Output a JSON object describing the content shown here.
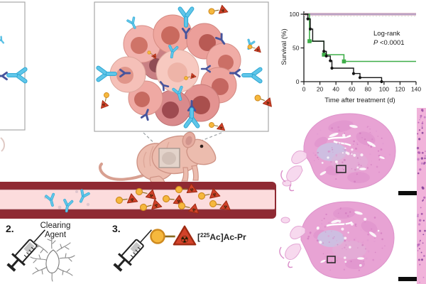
{
  "figure": {
    "steps": {
      "step2": {
        "number": "2.",
        "label_line1": "Clearing",
        "label_line2": "Agent"
      },
      "step3": {
        "number": "3.",
        "ligand": {
          "bracket": "[",
          "isotope": "225",
          "rest": "Ac]Ac-Pr"
        }
      }
    },
    "colors": {
      "antibody_cyan": "#5fc6e9",
      "receptor_navy": "#46549c",
      "payload_yellow": "#f6b83d",
      "payload_red": "#d2422a",
      "vessel_wall": "#8f2a33",
      "vessel_lumen": "#fcdcdd",
      "tumor_cell_pink": "#f2b3ae",
      "tissue_pink": "#e8a3d4",
      "mouse_body": "#ecbcae"
    }
  },
  "chart_data": {
    "type": "line",
    "subtype": "kaplan-meier",
    "title": "",
    "xlabel": "Time after treatment (d)",
    "ylabel": "Survival (%)",
    "xlim": [
      0,
      140
    ],
    "ylim": [
      0,
      100
    ],
    "xticks": [
      0,
      20,
      40,
      60,
      80,
      100,
      120,
      140
    ],
    "yticks": [
      0,
      50,
      100
    ],
    "grid": false,
    "legend": "none",
    "annotation": {
      "line1": "Log-rank",
      "p_symbol": "P",
      "p_value": " <0.0001"
    },
    "series": [
      {
        "name": "censor-dashes",
        "color": "#ccd8c6",
        "width": 1,
        "dash": "1.5,3",
        "points": [
          [
            2,
            97
          ],
          [
            140,
            97
          ]
        ],
        "markers": [],
        "marker": "none"
      },
      {
        "name": "pink-line-100pct",
        "color": "#dfbccb",
        "width": 4,
        "points": [
          [
            0,
            100
          ],
          [
            140,
            100
          ]
        ],
        "markers": [],
        "marker": "none"
      },
      {
        "name": "purple-line-100pct",
        "color": "#b9a3c5",
        "width": 2,
        "points": [
          [
            0,
            100
          ],
          [
            140,
            100
          ]
        ],
        "markers": [],
        "marker": "none"
      },
      {
        "name": "green-line",
        "color": "#3fae49",
        "width": 1.6,
        "points": [
          [
            0,
            100
          ],
          [
            7,
            100
          ],
          [
            7,
            60
          ],
          [
            25,
            60
          ],
          [
            25,
            40
          ],
          [
            50,
            40
          ],
          [
            50,
            30
          ],
          [
            140,
            30
          ]
        ],
        "markers": [
          [
            7,
            60
          ],
          [
            25,
            40
          ],
          [
            50,
            30
          ]
        ],
        "marker": "square"
      },
      {
        "name": "black-line",
        "color": "#141414",
        "width": 1.4,
        "points": [
          [
            0,
            100
          ],
          [
            5,
            100
          ],
          [
            5,
            93
          ],
          [
            8,
            93
          ],
          [
            8,
            78
          ],
          [
            11,
            78
          ],
          [
            11,
            60
          ],
          [
            25,
            60
          ],
          [
            25,
            45
          ],
          [
            28,
            45
          ],
          [
            28,
            38
          ],
          [
            33,
            38
          ],
          [
            33,
            31
          ],
          [
            35,
            31
          ],
          [
            35,
            20
          ],
          [
            62,
            20
          ],
          [
            62,
            12
          ],
          [
            70,
            12
          ],
          [
            70,
            6
          ],
          [
            97,
            6
          ],
          [
            97,
            0
          ]
        ],
        "markers": [
          [
            5,
            93
          ],
          [
            8,
            78
          ],
          [
            25,
            45
          ],
          [
            28,
            38
          ],
          [
            33,
            31
          ],
          [
            35,
            20
          ],
          [
            62,
            12
          ],
          [
            70,
            6
          ],
          [
            97,
            0
          ]
        ],
        "marker": "circle"
      }
    ]
  }
}
